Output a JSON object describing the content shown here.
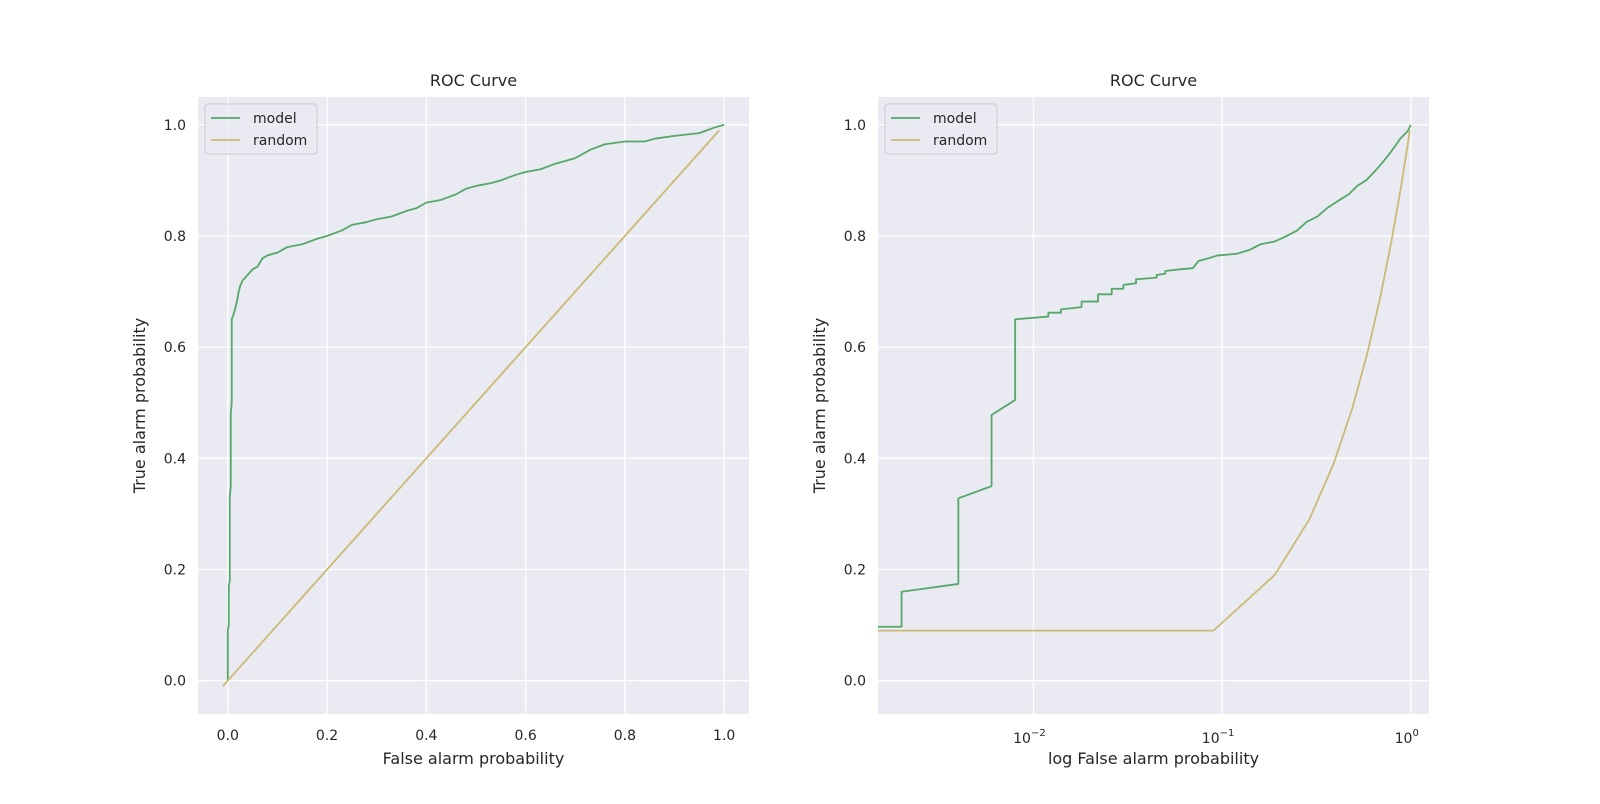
{
  "chart_data": [
    {
      "type": "line",
      "title": "ROC Curve",
      "xlabel": "False alarm probability",
      "ylabel": "True alarm probability",
      "xscale": "linear",
      "xlim": [
        -0.06,
        1.05
      ],
      "ylim": [
        -0.06,
        1.05
      ],
      "xticks": [
        0.0,
        0.2,
        0.4,
        0.6,
        0.8,
        1.0
      ],
      "xtick_labels": [
        "0.0",
        "0.2",
        "0.4",
        "0.6",
        "0.8",
        "1.0"
      ],
      "yticks": [
        0.0,
        0.2,
        0.4,
        0.6,
        0.8,
        1.0
      ],
      "ytick_labels": [
        "0.0",
        "0.2",
        "0.4",
        "0.6",
        "0.8",
        "1.0"
      ],
      "grid": true,
      "legend_position": "top-left",
      "series": [
        {
          "name": "model",
          "color": "#55a868",
          "points": [
            [
              0.0,
              0.0
            ],
            [
              0.0,
              0.09
            ],
            [
              0.002,
              0.1
            ],
            [
              0.002,
              0.17
            ],
            [
              0.004,
              0.18
            ],
            [
              0.004,
              0.33
            ],
            [
              0.006,
              0.35
            ],
            [
              0.006,
              0.48
            ],
            [
              0.008,
              0.5
            ],
            [
              0.008,
              0.65
            ],
            [
              0.012,
              0.66
            ],
            [
              0.015,
              0.67
            ],
            [
              0.018,
              0.68
            ],
            [
              0.022,
              0.7
            ],
            [
              0.025,
              0.71
            ],
            [
              0.03,
              0.72
            ],
            [
              0.04,
              0.73
            ],
            [
              0.05,
              0.74
            ],
            [
              0.06,
              0.745
            ],
            [
              0.07,
              0.76
            ],
            [
              0.08,
              0.765
            ],
            [
              0.1,
              0.77
            ],
            [
              0.12,
              0.78
            ],
            [
              0.15,
              0.785
            ],
            [
              0.18,
              0.795
            ],
            [
              0.2,
              0.8
            ],
            [
              0.23,
              0.81
            ],
            [
              0.25,
              0.82
            ],
            [
              0.28,
              0.825
            ],
            [
              0.3,
              0.83
            ],
            [
              0.33,
              0.835
            ],
            [
              0.36,
              0.845
            ],
            [
              0.38,
              0.85
            ],
            [
              0.4,
              0.86
            ],
            [
              0.43,
              0.865
            ],
            [
              0.46,
              0.875
            ],
            [
              0.48,
              0.885
            ],
            [
              0.5,
              0.89
            ],
            [
              0.53,
              0.895
            ],
            [
              0.55,
              0.9
            ],
            [
              0.58,
              0.91
            ],
            [
              0.6,
              0.915
            ],
            [
              0.63,
              0.92
            ],
            [
              0.66,
              0.93
            ],
            [
              0.7,
              0.94
            ],
            [
              0.73,
              0.955
            ],
            [
              0.76,
              0.965
            ],
            [
              0.8,
              0.97
            ],
            [
              0.84,
              0.97
            ],
            [
              0.86,
              0.975
            ],
            [
              0.9,
              0.98
            ],
            [
              0.95,
              0.985
            ],
            [
              0.98,
              0.995
            ],
            [
              1.0,
              1.0
            ]
          ]
        },
        {
          "name": "random",
          "color": "#ccb974",
          "points": [
            [
              -0.01,
              -0.01
            ],
            [
              0.99,
              0.99
            ]
          ]
        }
      ]
    },
    {
      "type": "line",
      "title": "ROC Curve",
      "xlabel": "log False alarm probability",
      "ylabel": "True alarm probability",
      "xscale": "log",
      "xlim": [
        0.0015,
        1.25
      ],
      "ylim": [
        -0.06,
        1.05
      ],
      "xticks": [
        0.01,
        0.1,
        1.0
      ],
      "xtick_labels": [
        [
          "10",
          "−2"
        ],
        [
          "10",
          "−1"
        ],
        [
          "10",
          "0"
        ]
      ],
      "yticks": [
        0.0,
        0.2,
        0.4,
        0.6,
        0.8,
        1.0
      ],
      "ytick_labels": [
        "0.0",
        "0.2",
        "0.4",
        "0.6",
        "0.8",
        "1.0"
      ],
      "grid": true,
      "legend_position": "top-left",
      "series": [
        {
          "name": "model",
          "color": "#55a868",
          "points": [
            [
              0.0015,
              0.097
            ],
            [
              0.002,
              0.097
            ],
            [
              0.002,
              0.16
            ],
            [
              0.004,
              0.174
            ],
            [
              0.004,
              0.328
            ],
            [
              0.006,
              0.35
            ],
            [
              0.006,
              0.478
            ],
            [
              0.008,
              0.505
            ],
            [
              0.008,
              0.65
            ],
            [
              0.012,
              0.655
            ],
            [
              0.012,
              0.662
            ],
            [
              0.014,
              0.662
            ],
            [
              0.014,
              0.668
            ],
            [
              0.018,
              0.672
            ],
            [
              0.018,
              0.682
            ],
            [
              0.022,
              0.682
            ],
            [
              0.022,
              0.695
            ],
            [
              0.026,
              0.695
            ],
            [
              0.026,
              0.705
            ],
            [
              0.03,
              0.705
            ],
            [
              0.03,
              0.712
            ],
            [
              0.035,
              0.715
            ],
            [
              0.035,
              0.722
            ],
            [
              0.045,
              0.725
            ],
            [
              0.045,
              0.73
            ],
            [
              0.05,
              0.732
            ],
            [
              0.05,
              0.737
            ],
            [
              0.06,
              0.74
            ],
            [
              0.07,
              0.742
            ],
            [
              0.075,
              0.755
            ],
            [
              0.085,
              0.76
            ],
            [
              0.095,
              0.765
            ],
            [
              0.12,
              0.768
            ],
            [
              0.14,
              0.775
            ],
            [
              0.16,
              0.785
            ],
            [
              0.19,
              0.79
            ],
            [
              0.22,
              0.8
            ],
            [
              0.25,
              0.81
            ],
            [
              0.28,
              0.825
            ],
            [
              0.32,
              0.835
            ],
            [
              0.36,
              0.85
            ],
            [
              0.42,
              0.865
            ],
            [
              0.47,
              0.875
            ],
            [
              0.52,
              0.89
            ],
            [
              0.58,
              0.9
            ],
            [
              0.64,
              0.915
            ],
            [
              0.7,
              0.93
            ],
            [
              0.76,
              0.945
            ],
            [
              0.82,
              0.96
            ],
            [
              0.88,
              0.975
            ],
            [
              0.94,
              0.985
            ],
            [
              0.97,
              0.99
            ],
            [
              1.0,
              1.0
            ]
          ]
        },
        {
          "name": "random",
          "color": "#ccb974",
          "points": [
            [
              0.0015,
              0.09
            ],
            [
              0.09,
              0.09
            ],
            [
              0.19,
              0.19
            ],
            [
              0.29,
              0.29
            ],
            [
              0.39,
              0.39
            ],
            [
              0.49,
              0.49
            ],
            [
              0.59,
              0.59
            ],
            [
              0.69,
              0.69
            ],
            [
              0.79,
              0.79
            ],
            [
              0.89,
              0.89
            ],
            [
              0.99,
              0.99
            ]
          ]
        }
      ]
    }
  ]
}
